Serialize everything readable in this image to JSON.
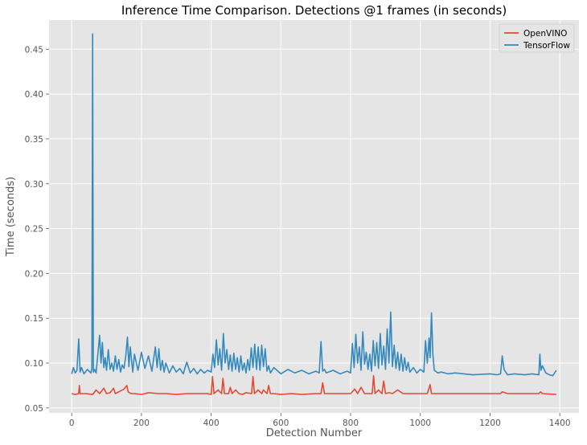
{
  "chart_data": {
    "type": "line",
    "title": "Inference Time Comparison. Detections @1 frames (in seconds)",
    "xlabel": "Detection Number",
    "ylabel": "Time (seconds)",
    "xlim": [
      -65,
      1455
    ],
    "ylim": [
      0.0445,
      0.4825
    ],
    "xticks": [
      0,
      200,
      400,
      600,
      800,
      1000,
      1200,
      1400
    ],
    "xtick_labels": [
      "0",
      "200",
      "400",
      "600",
      "800",
      "1000",
      "1200",
      "1400"
    ],
    "yticks": [
      0.05,
      0.1,
      0.15,
      0.2,
      0.25,
      0.3,
      0.35,
      0.4,
      0.45
    ],
    "ytick_labels": [
      "0.05",
      "0.10",
      "0.15",
      "0.20",
      "0.25",
      "0.30",
      "0.35",
      "0.40",
      "0.45"
    ],
    "grid": true,
    "legend_position": "top-right",
    "series": [
      {
        "name": "OpenVINO",
        "color": "#E24A33",
        "x": [
          0,
          10,
          20,
          22,
          24,
          40,
          60,
          70,
          80,
          92,
          100,
          110,
          120,
          125,
          135,
          150,
          158,
          162,
          170,
          180,
          200,
          220,
          250,
          270,
          300,
          330,
          360,
          390,
          400,
          404,
          408,
          420,
          430,
          434,
          438,
          450,
          455,
          460,
          470,
          480,
          490,
          500,
          516,
          520,
          524,
          535,
          545,
          550,
          560,
          565,
          570,
          580,
          600,
          630,
          660,
          700,
          715,
          720,
          725,
          750,
          780,
          800,
          812,
          820,
          830,
          840,
          850,
          862,
          866,
          870,
          880,
          890,
          895,
          900,
          910,
          920,
          935,
          950,
          970,
          1000,
          1020,
          1028,
          1032,
          1050,
          1100,
          1150,
          1200,
          1230,
          1235,
          1250,
          1300,
          1340,
          1345,
          1350,
          1390
        ],
        "y": [
          0.066,
          0.065,
          0.066,
          0.075,
          0.066,
          0.066,
          0.065,
          0.07,
          0.066,
          0.072,
          0.066,
          0.067,
          0.072,
          0.066,
          0.068,
          0.071,
          0.075,
          0.068,
          0.066,
          0.066,
          0.065,
          0.067,
          0.066,
          0.066,
          0.065,
          0.066,
          0.066,
          0.066,
          0.065,
          0.085,
          0.066,
          0.07,
          0.066,
          0.083,
          0.066,
          0.066,
          0.073,
          0.066,
          0.07,
          0.066,
          0.065,
          0.067,
          0.066,
          0.085,
          0.066,
          0.07,
          0.066,
          0.07,
          0.066,
          0.075,
          0.066,
          0.066,
          0.065,
          0.066,
          0.065,
          0.066,
          0.066,
          0.078,
          0.066,
          0.066,
          0.066,
          0.066,
          0.071,
          0.066,
          0.073,
          0.066,
          0.066,
          0.066,
          0.086,
          0.066,
          0.07,
          0.066,
          0.08,
          0.066,
          0.067,
          0.066,
          0.07,
          0.066,
          0.066,
          0.066,
          0.066,
          0.076,
          0.066,
          0.066,
          0.066,
          0.066,
          0.066,
          0.066,
          0.068,
          0.066,
          0.066,
          0.066,
          0.068,
          0.066,
          0.065
        ]
      },
      {
        "name": "TensorFlow",
        "color": "#348ABD",
        "x": [
          0,
          5,
          10,
          15,
          20,
          24,
          28,
          35,
          45,
          55,
          58,
          60,
          62,
          66,
          70,
          80,
          84,
          88,
          92,
          96,
          100,
          105,
          110,
          115,
          120,
          125,
          130,
          135,
          140,
          145,
          150,
          155,
          160,
          164,
          168,
          175,
          180,
          190,
          200,
          210,
          220,
          230,
          240,
          245,
          250,
          255,
          260,
          265,
          270,
          280,
          290,
          300,
          310,
          320,
          330,
          340,
          350,
          360,
          370,
          380,
          390,
          400,
          405,
          410,
          415,
          420,
          425,
          430,
          435,
          440,
          445,
          450,
          455,
          460,
          465,
          470,
          475,
          480,
          485,
          490,
          495,
          500,
          505,
          510,
          515,
          520,
          525,
          530,
          535,
          540,
          545,
          550,
          555,
          560,
          565,
          570,
          580,
          600,
          620,
          640,
          660,
          680,
          700,
          710,
          715,
          720,
          725,
          730,
          750,
          770,
          790,
          800,
          805,
          810,
          815,
          820,
          825,
          830,
          835,
          840,
          845,
          850,
          855,
          860,
          865,
          870,
          875,
          880,
          885,
          890,
          895,
          900,
          905,
          910,
          915,
          920,
          925,
          930,
          935,
          940,
          945,
          950,
          955,
          960,
          965,
          970,
          980,
          990,
          1000,
          1010,
          1015,
          1020,
          1025,
          1028,
          1032,
          1036,
          1040,
          1050,
          1060,
          1080,
          1100,
          1150,
          1200,
          1220,
          1230,
          1235,
          1240,
          1250,
          1270,
          1300,
          1320,
          1340,
          1343,
          1346,
          1350,
          1360,
          1370,
          1380,
          1390
        ],
        "y": [
          0.088,
          0.095,
          0.089,
          0.092,
          0.127,
          0.09,
          0.095,
          0.088,
          0.093,
          0.089,
          0.094,
          0.467,
          0.09,
          0.093,
          0.089,
          0.131,
          0.1,
          0.123,
          0.095,
          0.106,
          0.092,
          0.115,
          0.093,
          0.1,
          0.091,
          0.108,
          0.093,
          0.104,
          0.09,
          0.098,
          0.094,
          0.108,
          0.129,
          0.096,
          0.118,
          0.09,
          0.11,
          0.092,
          0.112,
          0.094,
          0.108,
          0.091,
          0.118,
          0.095,
          0.116,
          0.092,
          0.103,
          0.09,
          0.1,
          0.089,
          0.097,
          0.09,
          0.094,
          0.088,
          0.101,
          0.089,
          0.094,
          0.088,
          0.093,
          0.089,
          0.092,
          0.09,
          0.11,
          0.095,
          0.126,
          0.098,
          0.116,
          0.092,
          0.133,
          0.1,
          0.115,
          0.093,
          0.109,
          0.091,
          0.111,
          0.093,
          0.106,
          0.09,
          0.108,
          0.092,
          0.1,
          0.089,
          0.104,
          0.092,
          0.117,
          0.095,
          0.121,
          0.093,
          0.118,
          0.092,
          0.12,
          0.096,
          0.116,
          0.091,
          0.097,
          0.089,
          0.095,
          0.088,
          0.093,
          0.089,
          0.092,
          0.088,
          0.091,
          0.089,
          0.124,
          0.091,
          0.093,
          0.089,
          0.092,
          0.088,
          0.091,
          0.089,
          0.122,
          0.095,
          0.132,
          0.1,
          0.118,
          0.092,
          0.135,
          0.099,
          0.112,
          0.093,
          0.11,
          0.091,
          0.125,
          0.097,
          0.123,
          0.094,
          0.133,
          0.098,
          0.119,
          0.093,
          0.138,
          0.1,
          0.157,
          0.096,
          0.12,
          0.094,
          0.112,
          0.092,
          0.11,
          0.091,
          0.106,
          0.092,
          0.101,
          0.09,
          0.095,
          0.089,
          0.093,
          0.09,
          0.125,
          0.1,
          0.128,
          0.106,
          0.156,
          0.11,
          0.092,
          0.089,
          0.09,
          0.088,
          0.089,
          0.087,
          0.088,
          0.087,
          0.088,
          0.108,
          0.093,
          0.087,
          0.088,
          0.087,
          0.088,
          0.087,
          0.11,
          0.092,
          0.097,
          0.089,
          0.087,
          0.086,
          0.092
        ]
      }
    ]
  }
}
